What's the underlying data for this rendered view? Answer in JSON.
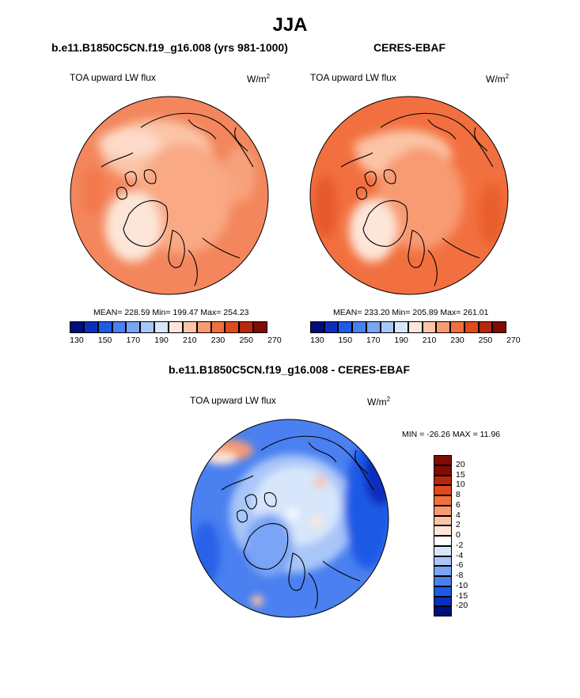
{
  "figure": {
    "season_title": "JJA",
    "units_base": "W/m",
    "units_exp": "2"
  },
  "panels": [
    {
      "title": "b.e11.B1850C5CN.f19_g16.008 (yrs 981-1000)",
      "variable": "TOA upward LW flux",
      "stats": "MEAN= 228.59  Min= 199.47  Max= 254.23",
      "mean": 228.59,
      "min": 199.47,
      "max": 254.23
    },
    {
      "title": "CERES-EBAF",
      "variable": "TOA upward LW flux",
      "stats": "MEAN= 233.20  Min= 205.89  Max= 261.01",
      "mean": 233.2,
      "min": 205.89,
      "max": 261.01
    },
    {
      "title": "b.e11.B1850C5CN.f19_g16.008 - CERES-EBAF",
      "variable": "TOA upward LW flux",
      "stats": "MIN = -26.26 MAX =  11.96",
      "min": -26.26,
      "max": 11.96
    }
  ],
  "abs_colorbar": {
    "labels": [
      "130",
      "150",
      "170",
      "190",
      "210",
      "230",
      "250",
      "270"
    ],
    "colors": [
      "#000e7a",
      "#0a2fbd",
      "#1e5ae6",
      "#4a80f0",
      "#7aa4f5",
      "#a9c6f8",
      "#d7e6fb",
      "#fde6d8",
      "#fbc4a6",
      "#f89a72",
      "#f2703f",
      "#e04a1c",
      "#b8260b",
      "#7f0c04"
    ]
  },
  "diff_colorbar": {
    "labels": [
      "20",
      "15",
      "10",
      "8",
      "6",
      "4",
      "2",
      "0",
      "-2",
      "-4",
      "-6",
      "-8",
      "-10",
      "-15",
      "-20"
    ],
    "colors": [
      "#7f0c04",
      "#b8260b",
      "#e04a1c",
      "#f2703f",
      "#f89a72",
      "#fbc4a6",
      "#fde6d8",
      "#ffffff",
      "#d7e6fb",
      "#a9c6f8",
      "#7aa4f5",
      "#4a80f0",
      "#1e5ae6",
      "#0a2fbd",
      "#000e7a"
    ]
  }
}
